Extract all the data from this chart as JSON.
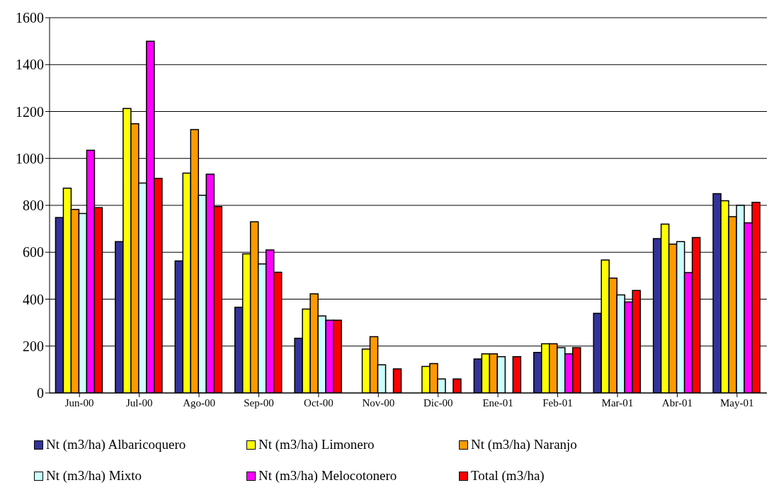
{
  "chart_data": {
    "type": "bar",
    "categories": [
      "Jun-00",
      "Jul-00",
      "Ago-00",
      "Sep-00",
      "Oct-00",
      "Nov-00",
      "Dic-00",
      "Ene-01",
      "Feb-01",
      "Mar-01",
      "Abr-01",
      "May-01"
    ],
    "series": [
      {
        "name": "Nt (m3/ha) Albaricoquero",
        "color": "#333399",
        "values": [
          748,
          645,
          563,
          365,
          233,
          null,
          null,
          145,
          173,
          340,
          658,
          850
        ]
      },
      {
        "name": "Nt (m3/ha) Limonero",
        "color": "#ffff00",
        "values": [
          873,
          1213,
          937,
          593,
          358,
          187,
          113,
          167,
          210,
          567,
          720,
          820
        ]
      },
      {
        "name": "Nt (m3/ha) Naranjo",
        "color": "#ff9900",
        "values": [
          783,
          1148,
          1123,
          730,
          423,
          240,
          125,
          167,
          210,
          490,
          635,
          752
        ]
      },
      {
        "name": "Nt (m3/ha) Mixto",
        "color": "#ccffff",
        "values": [
          765,
          895,
          843,
          550,
          328,
          120,
          60,
          155,
          193,
          418,
          645,
          800
        ]
      },
      {
        "name": "Nt (m3/ha) Melocotonero",
        "color": "#ff00ff",
        "values": [
          1035,
          1500,
          933,
          610,
          310,
          null,
          null,
          null,
          167,
          388,
          513,
          725
        ]
      },
      {
        "name": "Total (m3/ha)",
        "color": "#ff0000",
        "values": [
          790,
          915,
          795,
          515,
          310,
          103,
          60,
          155,
          193,
          437,
          663,
          813
        ]
      }
    ],
    "ylim": [
      0,
      1600
    ],
    "yticks": [
      0,
      200,
      400,
      600,
      800,
      1000,
      1200,
      1400,
      1600
    ],
    "grid": "y",
    "legend": "bottom"
  }
}
